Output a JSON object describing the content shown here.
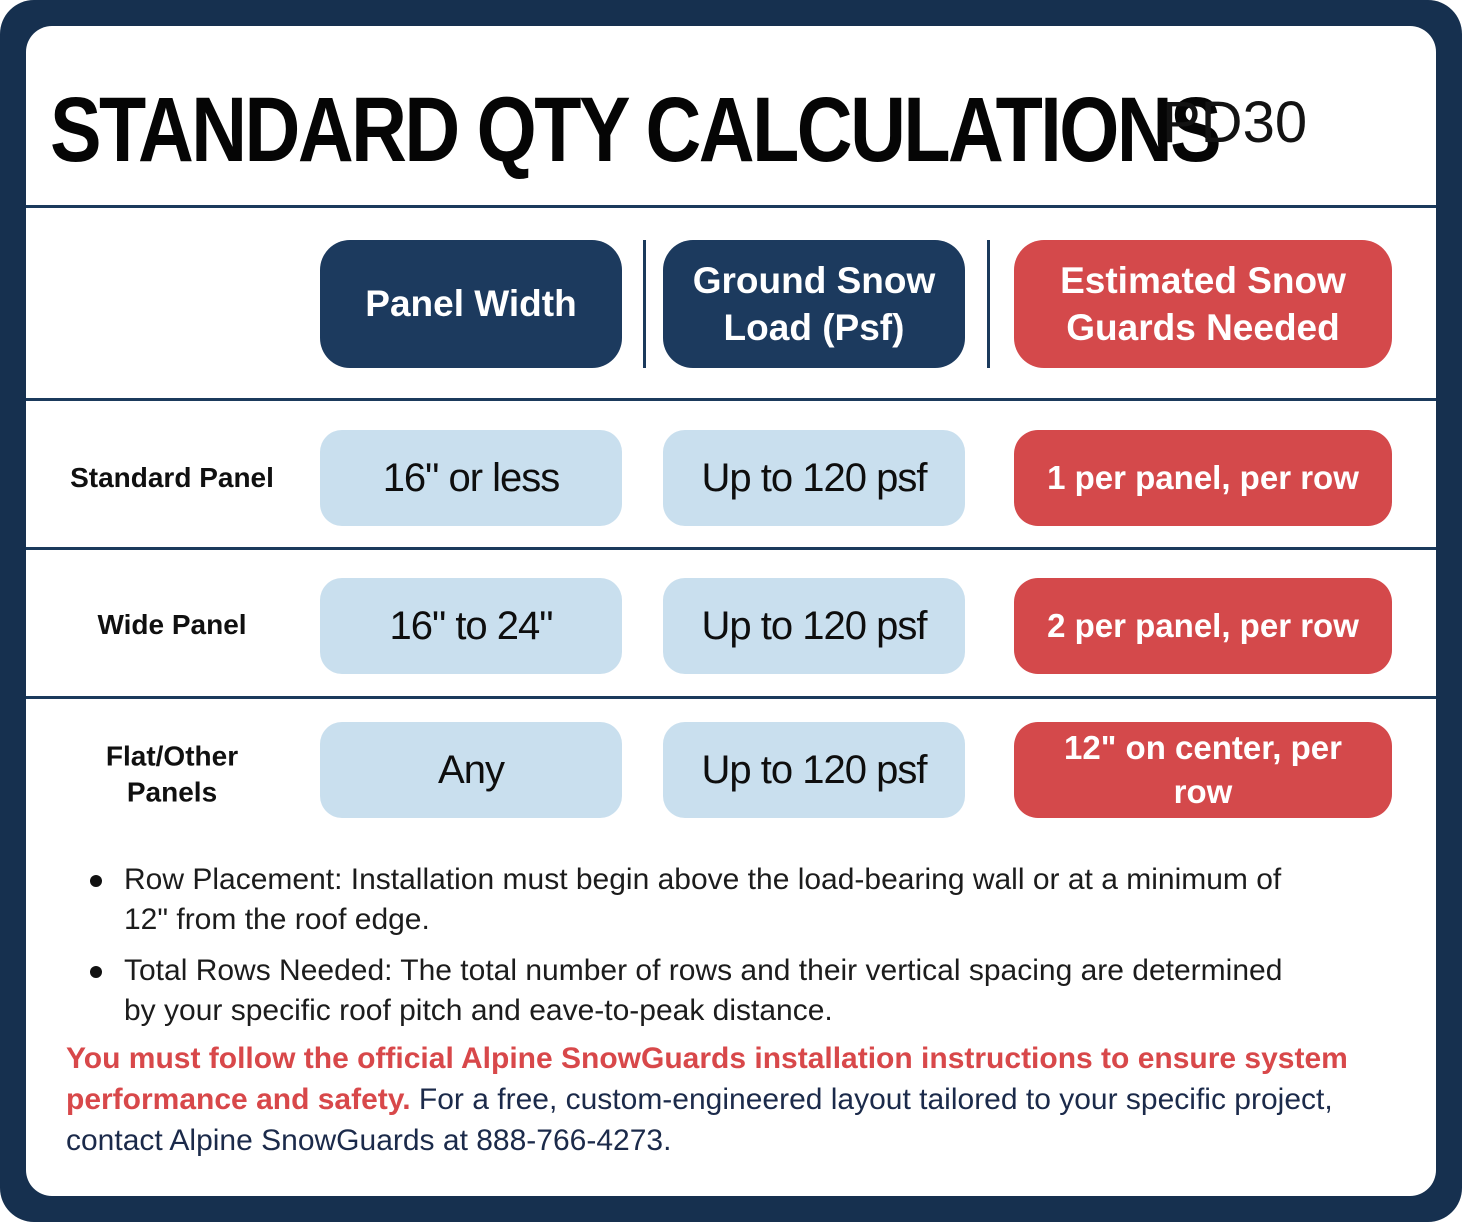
{
  "title": "STANDARD QTY CALCULATIONS",
  "doc_code": "PD30",
  "colors": {
    "frame_navy": "#16304f",
    "pill_navy": "#1c3a5e",
    "pill_red": "#d4494b",
    "pill_light_blue": "#c9dfee",
    "rule_line": "#1b3a5c",
    "warning_red": "#d8484a",
    "body_navy": "#1b2a4a"
  },
  "table": {
    "headers": [
      {
        "label": "Panel Width"
      },
      {
        "label": "Ground Snow Load (Psf)"
      },
      {
        "label": "Estimated Snow Guards Needed"
      }
    ],
    "rows": [
      {
        "label": "Standard Panel",
        "panel_width": "16\" or less",
        "ground_snow_load": "Up to 120 psf",
        "guards_needed": "1 per panel, per row"
      },
      {
        "label": "Wide Panel",
        "panel_width": "16\" to 24\"",
        "ground_snow_load": "Up to 120 psf",
        "guards_needed": "2 per panel, per row"
      },
      {
        "label": "Flat/Other Panels",
        "panel_width": "Any",
        "ground_snow_load": "Up to 120 psf",
        "guards_needed": "12\" on center, per row"
      }
    ]
  },
  "notes": [
    "Row Placement: Installation must begin above the load-bearing wall or at a minimum of 12\" from the roof edge.",
    "Total Rows Needed: The total number of rows and their vertical spacing are determined by your specific roof pitch and eave-to-peak distance."
  ],
  "footer": {
    "warning_bold": "You must follow the official Alpine SnowGuards installation instructions to ensure system performance and safety.",
    "warning_rest": " For a free, custom-engineered layout tailored to your specific project, contact Alpine SnowGuards at 888-766-4273."
  }
}
